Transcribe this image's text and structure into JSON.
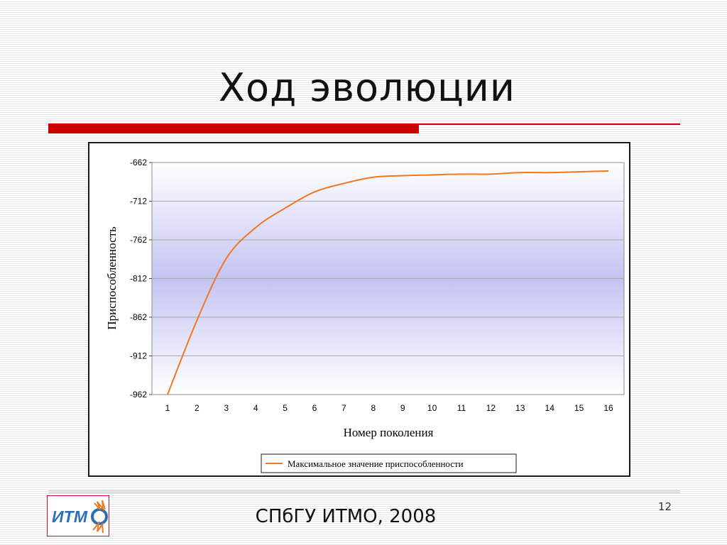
{
  "slide": {
    "title": "Ход эволюции",
    "footer": "СПбГУ ИТМО, 2008",
    "page_number": "12",
    "logo_text": "ИТМО"
  },
  "colors": {
    "accent_red": "#cc0000",
    "series_line": "#f07820",
    "plot_gradient_top": "#ffffff",
    "plot_gradient_mid": "#c4c4f2"
  },
  "chart_data": {
    "type": "line",
    "title": "",
    "xlabel": "Номер поколения",
    "ylabel": "Приспособленность",
    "categories": [
      "1",
      "2",
      "3",
      "4",
      "5",
      "6",
      "7",
      "8",
      "9",
      "10",
      "11",
      "12",
      "13",
      "14",
      "15",
      "16"
    ],
    "series": [
      {
        "name": "Максимальное значение приспособленности",
        "values": [
          -962,
          -866,
          -786,
          -746,
          -721,
          -700,
          -689,
          -681,
          -679,
          -678,
          -677,
          -677,
          -675,
          -675,
          -674,
          -673
        ]
      }
    ],
    "ylim": [
      -962,
      -662
    ],
    "yticks": [
      "-662",
      "-712",
      "-762",
      "-812",
      "-862",
      "-912",
      "-962"
    ],
    "grid": true,
    "legend_position": "bottom"
  }
}
